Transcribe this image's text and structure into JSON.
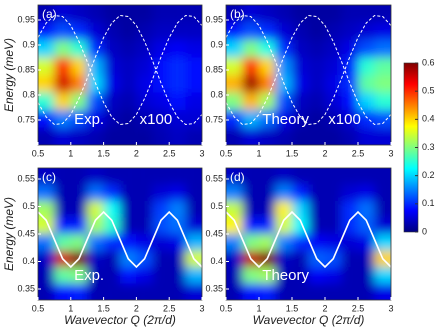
{
  "chart_data": [
    {
      "type": "heatmap",
      "label": "(a)",
      "annotations": [
        "Exp.",
        "x100"
      ],
      "ylabel": "Energy (meV)",
      "xlim": [
        0.5,
        3
      ],
      "ylim": [
        0.7,
        0.98
      ],
      "xticks": [
        0.5,
        1,
        1.5,
        2,
        2.5,
        3
      ],
      "yticks": [
        0.75,
        0.8,
        0.85,
        0.9,
        0.95
      ],
      "clim": [
        0,
        0.6
      ],
      "x": [
        0.625,
        0.875,
        1.125,
        1.375,
        1.625,
        1.875,
        2.125,
        2.375,
        2.625,
        2.875
      ],
      "y": [
        0.7175,
        0.7525,
        0.7875,
        0.8225,
        0.8575,
        0.8925,
        0.9275,
        0.9625
      ],
      "z": [
        [
          0.03,
          0.05,
          0.04,
          0.03,
          0.02,
          0.02,
          0.02,
          0.03,
          0.04,
          0.03
        ],
        [
          0.08,
          0.15,
          0.12,
          0.06,
          0.03,
          0.02,
          0.03,
          0.04,
          0.05,
          0.05
        ],
        [
          0.25,
          0.4,
          0.3,
          0.12,
          0.04,
          0.03,
          0.05,
          0.06,
          0.08,
          0.06
        ],
        [
          0.4,
          0.55,
          0.45,
          0.2,
          0.06,
          0.04,
          0.06,
          0.08,
          0.1,
          0.08
        ],
        [
          0.35,
          0.5,
          0.4,
          0.18,
          0.05,
          0.04,
          0.05,
          0.08,
          0.1,
          0.08
        ],
        [
          0.2,
          0.3,
          0.25,
          0.1,
          0.04,
          0.03,
          0.04,
          0.06,
          0.07,
          0.06
        ],
        [
          0.08,
          0.12,
          0.1,
          0.05,
          0.03,
          0.02,
          0.03,
          0.04,
          0.04,
          0.04
        ],
        [
          0.03,
          0.05,
          0.04,
          0.03,
          0.02,
          0.02,
          0.02,
          0.03,
          0.03,
          0.03
        ]
      ],
      "curve_x": [
        0.5,
        0.625,
        0.75,
        0.875,
        1,
        1.125,
        1.25,
        1.375,
        1.5,
        1.625,
        1.75,
        1.875,
        2,
        2.125,
        2.25,
        2.375,
        2.5,
        2.625,
        2.75,
        2.875,
        3
      ],
      "curves": [
        {
          "color": "#ffffff",
          "dashed": true,
          "values": [
            0.915,
            0.944,
            0.959,
            0.957,
            0.939,
            0.907,
            0.867,
            0.824,
            0.785,
            0.756,
            0.741,
            0.743,
            0.761,
            0.793,
            0.833,
            0.876,
            0.915,
            0.944,
            0.959,
            0.957,
            0.939
          ]
        },
        {
          "color": "#ffffff",
          "dashed": true,
          "values": [
            0.785,
            0.756,
            0.741,
            0.743,
            0.761,
            0.793,
            0.833,
            0.876,
            0.915,
            0.944,
            0.959,
            0.957,
            0.939,
            0.907,
            0.867,
            0.824,
            0.785,
            0.756,
            0.741,
            0.743,
            0.761
          ]
        }
      ]
    },
    {
      "type": "heatmap",
      "label": "(b)",
      "annotations": [
        "Theory",
        "x100"
      ],
      "xlim": [
        0.5,
        3
      ],
      "ylim": [
        0.7,
        0.98
      ],
      "xticks": [
        0.5,
        1,
        1.5,
        2,
        2.5,
        3
      ],
      "yticks": [
        0.75,
        0.8,
        0.85,
        0.9,
        0.95
      ],
      "clim": [
        0,
        0.6
      ],
      "cticks": [
        0,
        0.1,
        0.2,
        0.3,
        0.4,
        0.5,
        0.6
      ],
      "x": [
        0.625,
        0.875,
        1.125,
        1.375,
        1.625,
        1.875,
        2.125,
        2.375,
        2.625,
        2.875
      ],
      "y": [
        0.7175,
        0.7525,
        0.7875,
        0.8225,
        0.8575,
        0.8925,
        0.9275,
        0.9625
      ],
      "z": [
        [
          0.03,
          0.05,
          0.04,
          0.03,
          0.02,
          0.02,
          0.02,
          0.03,
          0.05,
          0.05
        ],
        [
          0.1,
          0.18,
          0.14,
          0.06,
          0.03,
          0.02,
          0.03,
          0.05,
          0.1,
          0.12
        ],
        [
          0.3,
          0.42,
          0.32,
          0.12,
          0.04,
          0.03,
          0.05,
          0.08,
          0.2,
          0.25
        ],
        [
          0.42,
          0.58,
          0.45,
          0.18,
          0.06,
          0.04,
          0.06,
          0.1,
          0.28,
          0.3
        ],
        [
          0.35,
          0.5,
          0.4,
          0.16,
          0.05,
          0.04,
          0.05,
          0.09,
          0.25,
          0.28
        ],
        [
          0.2,
          0.3,
          0.24,
          0.1,
          0.04,
          0.03,
          0.04,
          0.06,
          0.12,
          0.14
        ],
        [
          0.08,
          0.12,
          0.1,
          0.05,
          0.03,
          0.02,
          0.03,
          0.04,
          0.05,
          0.06
        ],
        [
          0.03,
          0.05,
          0.04,
          0.03,
          0.02,
          0.02,
          0.02,
          0.03,
          0.03,
          0.03
        ]
      ],
      "curve_x": [
        0.5,
        0.625,
        0.75,
        0.875,
        1,
        1.125,
        1.25,
        1.375,
        1.5,
        1.625,
        1.75,
        1.875,
        2,
        2.125,
        2.25,
        2.375,
        2.5,
        2.625,
        2.75,
        2.875,
        3
      ],
      "curves": [
        {
          "color": "#ffffff",
          "dashed": true,
          "values": [
            0.915,
            0.944,
            0.959,
            0.957,
            0.939,
            0.907,
            0.867,
            0.824,
            0.785,
            0.756,
            0.741,
            0.743,
            0.761,
            0.793,
            0.833,
            0.876,
            0.915,
            0.944,
            0.959,
            0.957,
            0.939
          ]
        },
        {
          "color": "#ffffff",
          "dashed": true,
          "values": [
            0.785,
            0.756,
            0.741,
            0.743,
            0.761,
            0.793,
            0.833,
            0.876,
            0.915,
            0.944,
            0.959,
            0.957,
            0.939,
            0.907,
            0.867,
            0.824,
            0.785,
            0.756,
            0.741,
            0.743,
            0.761
          ]
        }
      ]
    },
    {
      "type": "heatmap",
      "label": "(c)",
      "annotations": [
        "Exp."
      ],
      "ylabel": "Energy (meV)",
      "xlabel": "Wavevector Q (2π/d)",
      "xlim": [
        0.5,
        3
      ],
      "ylim": [
        0.33,
        0.57
      ],
      "xticks": [
        0.5,
        1,
        1.5,
        2,
        2.5,
        3
      ],
      "yticks": [
        0.35,
        0.4,
        0.45,
        0.5,
        0.55
      ],
      "clim": [
        0,
        0.6
      ],
      "x": [
        0.625,
        0.875,
        1.125,
        1.375,
        1.625,
        1.875,
        2.125,
        2.375,
        2.625,
        2.875
      ],
      "y": [
        0.345,
        0.375,
        0.405,
        0.435,
        0.465,
        0.495,
        0.525,
        0.555
      ],
      "z": [
        [
          0.03,
          0.08,
          0.09,
          0.03,
          0.03,
          0.03,
          0.03,
          0.03,
          0.03,
          0.05
        ],
        [
          0.03,
          0.28,
          0.3,
          0.03,
          0.03,
          0.08,
          0.06,
          0.03,
          0.03,
          0.18
        ],
        [
          0.04,
          0.55,
          0.6,
          0.04,
          0.03,
          0.15,
          0.12,
          0.03,
          0.03,
          0.35
        ],
        [
          0.14,
          0.28,
          0.3,
          0.14,
          0.1,
          0.08,
          0.06,
          0.05,
          0.06,
          0.18
        ],
        [
          0.35,
          0.08,
          0.09,
          0.32,
          0.25,
          0.03,
          0.03,
          0.12,
          0.14,
          0.05
        ],
        [
          0.32,
          0.03,
          0.03,
          0.35,
          0.23,
          0.03,
          0.03,
          0.11,
          0.15,
          0.03
        ],
        [
          0.14,
          0.03,
          0.03,
          0.14,
          0.1,
          0.03,
          0.03,
          0.05,
          0.06,
          0.03
        ],
        [
          0.04,
          0.03,
          0.03,
          0.04,
          0.03,
          0.03,
          0.03,
          0.03,
          0.03,
          0.03
        ]
      ],
      "curve_x": [
        0.5,
        0.625,
        0.75,
        0.875,
        1,
        1.125,
        1.25,
        1.375,
        1.5,
        1.625,
        1.75,
        1.875,
        2,
        2.125,
        2.25,
        2.375,
        2.5,
        2.625,
        2.75,
        2.875,
        3
      ],
      "curves": [
        {
          "color": "#ffffff",
          "dashed": false,
          "values": [
            0.49,
            0.475,
            0.44,
            0.405,
            0.39,
            0.405,
            0.44,
            0.475,
            0.49,
            0.475,
            0.44,
            0.405,
            0.39,
            0.405,
            0.44,
            0.475,
            0.49,
            0.475,
            0.44,
            0.405,
            0.39
          ]
        }
      ]
    },
    {
      "type": "heatmap",
      "label": "(d)",
      "annotations": [
        "Theory"
      ],
      "xlabel": "Wavevector Q (2π/d)",
      "xlim": [
        0.5,
        3
      ],
      "ylim": [
        0.33,
        0.57
      ],
      "xticks": [
        0.5,
        1,
        1.5,
        2,
        2.5,
        3
      ],
      "yticks": [
        0.35,
        0.4,
        0.45,
        0.5,
        0.55
      ],
      "clim": [
        0,
        0.6
      ],
      "x": [
        0.625,
        0.875,
        1.125,
        1.375,
        1.625,
        1.875,
        2.125,
        2.375,
        2.625,
        2.875
      ],
      "y": [
        0.345,
        0.375,
        0.405,
        0.435,
        0.465,
        0.495,
        0.525,
        0.555
      ],
      "z": [
        [
          0.03,
          0.08,
          0.09,
          0.03,
          0.03,
          0.03,
          0.03,
          0.03,
          0.03,
          0.06
        ],
        [
          0.03,
          0.3,
          0.32,
          0.03,
          0.03,
          0.07,
          0.06,
          0.03,
          0.03,
          0.2
        ],
        [
          0.04,
          0.56,
          0.6,
          0.04,
          0.03,
          0.13,
          0.12,
          0.03,
          0.03,
          0.4
        ],
        [
          0.15,
          0.3,
          0.32,
          0.15,
          0.1,
          0.07,
          0.06,
          0.05,
          0.06,
          0.2
        ],
        [
          0.38,
          0.08,
          0.09,
          0.35,
          0.22,
          0.03,
          0.03,
          0.1,
          0.13,
          0.05
        ],
        [
          0.34,
          0.03,
          0.03,
          0.38,
          0.2,
          0.03,
          0.03,
          0.1,
          0.14,
          0.03
        ],
        [
          0.15,
          0.03,
          0.03,
          0.15,
          0.09,
          0.03,
          0.03,
          0.05,
          0.06,
          0.03
        ],
        [
          0.04,
          0.03,
          0.03,
          0.04,
          0.03,
          0.03,
          0.03,
          0.03,
          0.03,
          0.03
        ]
      ],
      "curve_x": [
        0.5,
        0.625,
        0.75,
        0.875,
        1,
        1.125,
        1.25,
        1.375,
        1.5,
        1.625,
        1.75,
        1.875,
        2,
        2.125,
        2.25,
        2.375,
        2.5,
        2.625,
        2.75,
        2.875,
        3
      ],
      "curves": [
        {
          "color": "#ffffff",
          "dashed": false,
          "values": [
            0.49,
            0.475,
            0.44,
            0.405,
            0.39,
            0.405,
            0.44,
            0.475,
            0.49,
            0.475,
            0.44,
            0.405,
            0.39,
            0.405,
            0.44,
            0.475,
            0.49,
            0.475,
            0.44,
            0.405,
            0.39
          ]
        }
      ]
    }
  ]
}
